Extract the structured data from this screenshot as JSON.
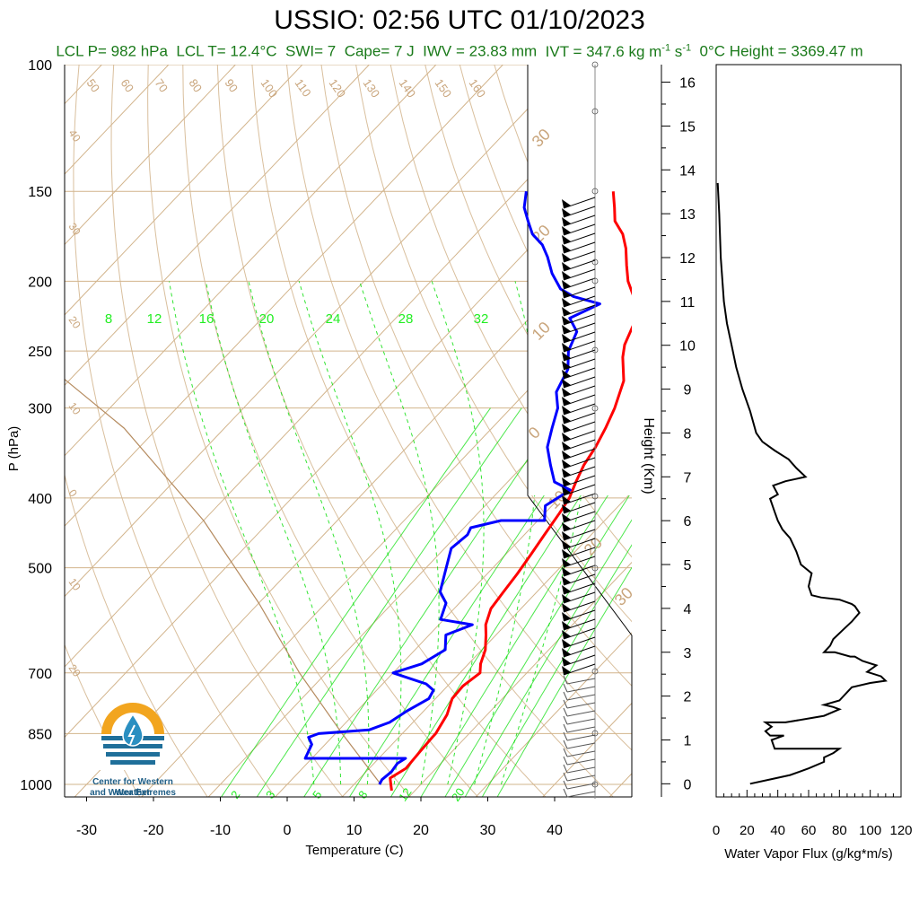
{
  "header": {
    "title": "USSIO: 02:56 UTC 01/10/2023",
    "info": {
      "lcl_p": "LCL P= 982 hPa",
      "lcl_t": "LCL T= 12.4°C",
      "swi": "SWI= 7",
      "cape": "Cape= 7 J",
      "iwv": "IWV = 23.83 mm",
      "ivt_prefix": "IVT = 347.6 kg m",
      "ivt_exp1": "-1",
      "ivt_mid": " s",
      "ivt_exp2": "-1",
      "zero_height": "0°C Height = 3369.47 m"
    }
  },
  "logo": {
    "line1": "Center for Western Weather",
    "line2": "and Water Extremes",
    "colors": {
      "sun": "#f2a51f",
      "water": "#1f6f9a",
      "drop": "#2a8fc1"
    }
  },
  "colors": {
    "temperature": "#ff0000",
    "dewpoint": "#0000ff",
    "background_lines": "#d2b48c",
    "mixing_ratio": "#00dd00",
    "flux": "#000000"
  },
  "chart_data": [
    {
      "type": "line",
      "subtype": "skew-T log-P",
      "xlabel": "Temperature (C)",
      "ylabel": "P (hPa)",
      "x_ticks": [
        "-30",
        "-20",
        "-10",
        "0",
        "10",
        "20",
        "30",
        "40"
      ],
      "y_ticks": [
        "100",
        "150",
        "200",
        "250",
        "300",
        "400",
        "500",
        "700",
        "850",
        "1000"
      ],
      "isotherm_labels": [
        "30",
        "20",
        "10",
        "0",
        "-10",
        "-20",
        "-30"
      ],
      "isotherm_label_text": [
        "30",
        "20",
        "10",
        "0",
        "10",
        "20",
        "30"
      ],
      "dry_adiabat_labels": [
        "50",
        "60",
        "70",
        "80",
        "90",
        "100",
        "110",
        "120",
        "130",
        "140",
        "150",
        "160"
      ],
      "left_edge_labels": [
        "40",
        "30",
        "20",
        "10",
        "0",
        "10",
        "20"
      ],
      "mixing_ratio_top_labels": [
        "8",
        "12",
        "16",
        "20",
        "24",
        "28",
        "32"
      ],
      "mixing_ratio_bottom_labels": [
        "2",
        "3",
        "5",
        "8",
        "12",
        "20"
      ],
      "xlim": [
        -34,
        52
      ],
      "ylim": [
        1050,
        100
      ],
      "series": [
        {
          "series_key": "temperature",
          "points": [
            [
              16.5,
              1020
            ],
            [
              15.5,
              1000
            ],
            [
              14.5,
              980
            ],
            [
              15.5,
              950
            ],
            [
              15.2,
              900
            ],
            [
              15.0,
              860
            ],
            [
              15.0,
              850
            ],
            [
              14.0,
              800
            ],
            [
              12.5,
              760
            ],
            [
              12.3,
              730
            ],
            [
              13.0,
              700
            ],
            [
              11.8,
              680
            ],
            [
              10.5,
              650
            ],
            [
              8.5,
              620
            ],
            [
              7.0,
              600
            ],
            [
              5.5,
              570
            ],
            [
              5.0,
              540
            ],
            [
              4.5,
              510
            ],
            [
              3.8,
              480
            ],
            [
              3.0,
              450
            ],
            [
              2.2,
              420
            ],
            [
              1.5,
              400
            ],
            [
              0.2,
              380
            ],
            [
              -1.0,
              360
            ],
            [
              -1.8,
              340
            ],
            [
              -3.0,
              320
            ],
            [
              -4.5,
              300
            ],
            [
              -7.0,
              275
            ],
            [
              -10.5,
              255
            ],
            [
              -12.0,
              245
            ],
            [
              -13.5,
              230
            ],
            [
              -15.5,
              220
            ],
            [
              -17.5,
              210
            ],
            [
              -20.5,
              200
            ],
            [
              -23.0,
              190
            ],
            [
              -25.5,
              180
            ],
            [
              -28.0,
              172
            ],
            [
              -31.0,
              165
            ],
            [
              -33.0,
              158
            ],
            [
              -35.5,
              150
            ]
          ]
        },
        {
          "series_key": "dewpoint",
          "points": [
            [
              13.8,
              1000
            ],
            [
              13.5,
              985
            ],
            [
              13.8,
              960
            ],
            [
              13.5,
              935
            ],
            [
              14.0,
              920
            ],
            [
              -1.0,
              920
            ],
            [
              -2.0,
              880
            ],
            [
              -3.5,
              860
            ],
            [
              -2.5,
              850
            ],
            [
              4.5,
              840
            ],
            [
              6.5,
              820
            ],
            [
              7.5,
              790
            ],
            [
              9.0,
              760
            ],
            [
              8.5,
              740
            ],
            [
              6.5,
              725
            ],
            [
              0.0,
              700
            ],
            [
              3.0,
              680
            ],
            [
              4.5,
              650
            ],
            [
              2.5,
              620
            ],
            [
              5.0,
              600
            ],
            [
              -0.5,
              590
            ],
            [
              -2.0,
              560
            ],
            [
              -4.5,
              540
            ],
            [
              -7.0,
              500
            ],
            [
              -9.0,
              470
            ],
            [
              -8.5,
              450
            ],
            [
              -9.0,
              440
            ],
            [
              -5.5,
              430
            ],
            [
              1.0,
              430
            ],
            [
              -1.0,
              410
            ],
            [
              0.5,
              390
            ],
            [
              -3.0,
              380
            ],
            [
              -6.0,
              360
            ],
            [
              -9.0,
              340
            ],
            [
              -11.0,
              320
            ],
            [
              -13.0,
              300
            ],
            [
              -15.5,
              285
            ],
            [
              -17.0,
              265
            ],
            [
              -19.5,
              250
            ],
            [
              -21.0,
              235
            ],
            [
              -24.0,
              225
            ],
            [
              -21.5,
              215
            ],
            [
              -26.5,
              210
            ],
            [
              -29.5,
              205
            ],
            [
              -33.0,
              195
            ],
            [
              -36.0,
              185
            ],
            [
              -38.5,
              178
            ],
            [
              -41.5,
              172
            ],
            [
              -44.0,
              165
            ],
            [
              -46.5,
              158
            ],
            [
              -48.5,
              150
            ]
          ]
        }
      ],
      "dry_adiabat_highlight": [
        [
          14.0,
          1000
        ],
        [
          1.0,
          850
        ],
        [
          -14.0,
          700
        ],
        [
          -30.0,
          560
        ],
        [
          -50.0,
          430
        ],
        [
          -75.0,
          320
        ],
        [
          -100.0,
          250
        ],
        [
          -125.0,
          200
        ],
        [
          -150.0,
          165
        ]
      ],
      "wind_barbs": "column of wind barbs along right side, speeds to ~40 kt"
    },
    {
      "type": "line",
      "xlabel": "Water Vapor Flux (g/kg*m/s)",
      "ylabel": "Height (Km)",
      "x_ticks": [
        "0",
        "20",
        "40",
        "60",
        "80",
        "100",
        "120"
      ],
      "y_ticks": [
        "0",
        "1",
        "2",
        "3",
        "4",
        "5",
        "6",
        "7",
        "8",
        "9",
        "10",
        "11",
        "12",
        "13",
        "14",
        "15",
        "16"
      ],
      "xlim": [
        0,
        120
      ],
      "ylim": [
        -0.3,
        16.4
      ],
      "series": [
        {
          "series_key": "flux",
          "points": [
            [
              22,
              0.0
            ],
            [
              35,
              0.1
            ],
            [
              48,
              0.2
            ],
            [
              60,
              0.35
            ],
            [
              70,
              0.5
            ],
            [
              70,
              0.6
            ],
            [
              76,
              0.7
            ],
            [
              80,
              0.8
            ],
            [
              68,
              0.8
            ],
            [
              58,
              0.8
            ],
            [
              43,
              0.8
            ],
            [
              38,
              0.8
            ],
            [
              37,
              0.9
            ],
            [
              36,
              1.0
            ],
            [
              44,
              1.1
            ],
            [
              35,
              1.1
            ],
            [
              32,
              1.2
            ],
            [
              36,
              1.3
            ],
            [
              32,
              1.4
            ],
            [
              45,
              1.4
            ],
            [
              62,
              1.5
            ],
            [
              70,
              1.55
            ],
            [
              80,
              1.7
            ],
            [
              76,
              1.75
            ],
            [
              70,
              1.8
            ],
            [
              80,
              1.9
            ],
            [
              88,
              2.2
            ],
            [
              100,
              2.3
            ],
            [
              110,
              2.35
            ],
            [
              107,
              2.45
            ],
            [
              98,
              2.55
            ],
            [
              104,
              2.7
            ],
            [
              95,
              2.8
            ],
            [
              90,
              2.9
            ],
            [
              87,
              2.9
            ],
            [
              77,
              3.0
            ],
            [
              70,
              3.0
            ],
            [
              74,
              3.15
            ],
            [
              76,
              3.3
            ],
            [
              82,
              3.5
            ],
            [
              88,
              3.7
            ],
            [
              93,
              3.9
            ],
            [
              90,
              4.05
            ],
            [
              88,
              4.1
            ],
            [
              80,
              4.2
            ],
            [
              68,
              4.25
            ],
            [
              62,
              4.3
            ],
            [
              60,
              4.5
            ],
            [
              62,
              4.8
            ],
            [
              55,
              5.0
            ],
            [
              52,
              5.3
            ],
            [
              48,
              5.6
            ],
            [
              43,
              5.8
            ],
            [
              40,
              6.0
            ],
            [
              38,
              6.2
            ],
            [
              35,
              6.5
            ],
            [
              40,
              6.6
            ],
            [
              37,
              6.8
            ],
            [
              45,
              6.9
            ],
            [
              58,
              7.0
            ],
            [
              52,
              7.2
            ],
            [
              47,
              7.4
            ],
            [
              38,
              7.6
            ],
            [
              30,
              7.8
            ],
            [
              26,
              8.0
            ],
            [
              22,
              8.5
            ],
            [
              17,
              9.0
            ],
            [
              13,
              9.5
            ],
            [
              10,
              10.0
            ],
            [
              7,
              10.5
            ],
            [
              5,
              11.0
            ],
            [
              3,
              12.0
            ],
            [
              2,
              13.0
            ],
            [
              1,
              13.7
            ]
          ]
        }
      ]
    }
  ]
}
